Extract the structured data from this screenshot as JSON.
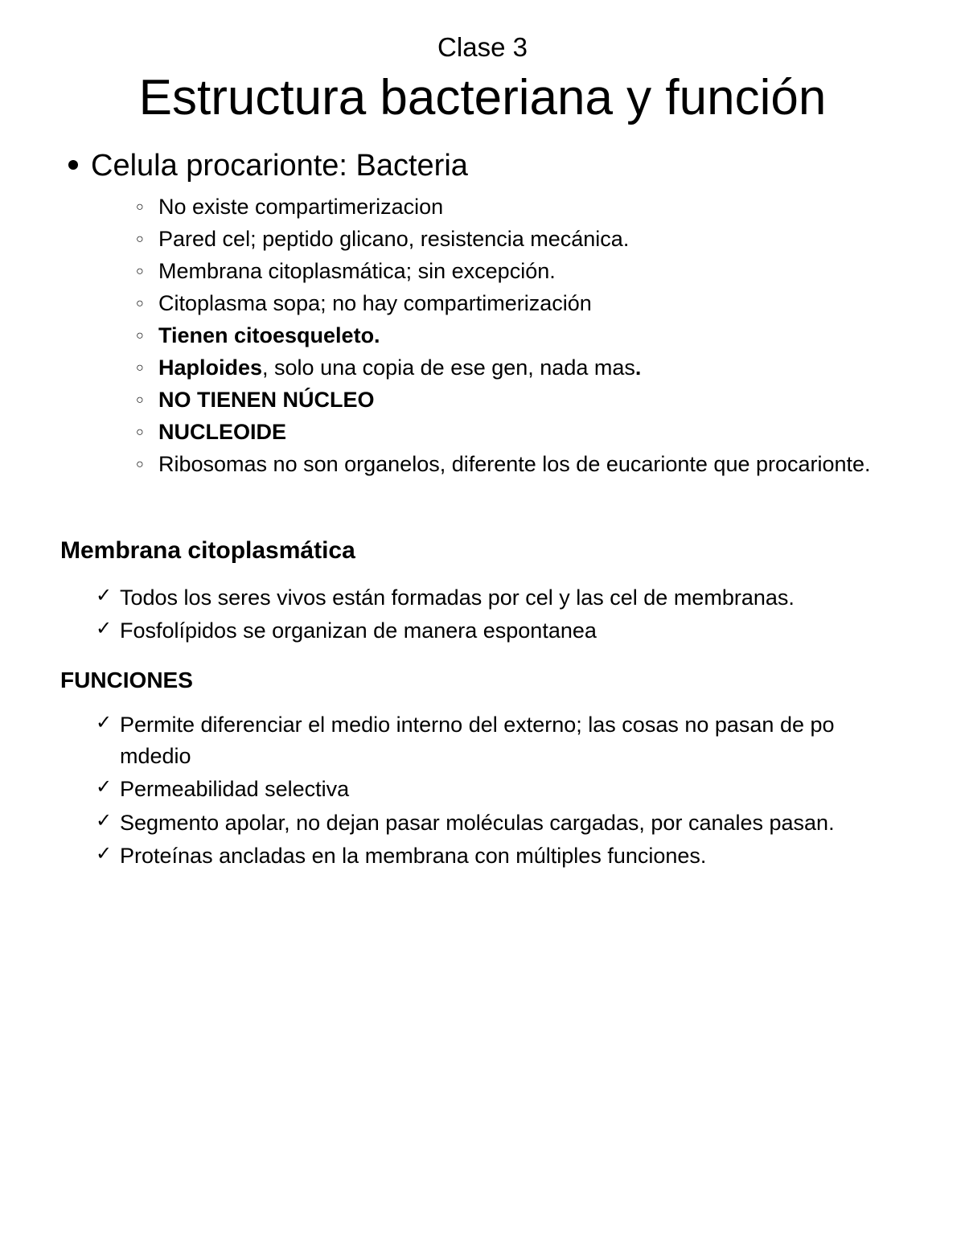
{
  "class_label": "Clase 3",
  "main_title": "Estructura bacteriana y función",
  "section1": {
    "heading": "Celula procarionte: Bacteria",
    "items": [
      {
        "text": "No existe compartimerizacion"
      },
      {
        "text": "Pared cel; peptido glicano, resistencia mecánica."
      },
      {
        "text": "Membrana citoplasmática; sin excepción."
      },
      {
        "text": "Citoplasma sopa; no hay compartimerización"
      },
      {
        "bold_prefix": "Tienen citoesqueleto."
      },
      {
        "bold_prefix": "Haploides",
        "text": ", solo una copia de ese gen, nada mas",
        "bold_suffix": "."
      },
      {
        "bold_prefix": "NO TIENEN NÚCLEO"
      },
      {
        "bold_prefix": "NUCLEOIDE"
      },
      {
        "text": "Ribosomas no son organelos, diferente los de eucarionte que procarionte."
      }
    ]
  },
  "section2": {
    "heading": "Membrana citoplasmática",
    "items": [
      "Todos los seres vivos están formadas por cel y las cel de membranas.",
      "Fosfolípidos se organizan de manera espontanea"
    ]
  },
  "section3": {
    "heading": "FUNCIONES",
    "items": [
      "Permite diferenciar el medio interno del externo; las cosas no pasan de po mdedio",
      "Permeabilidad selectiva",
      "Segmento apolar, no dejan pasar moléculas cargadas, por canales pasan.",
      "Proteínas ancladas en la membrana con múltiples funciones."
    ]
  }
}
